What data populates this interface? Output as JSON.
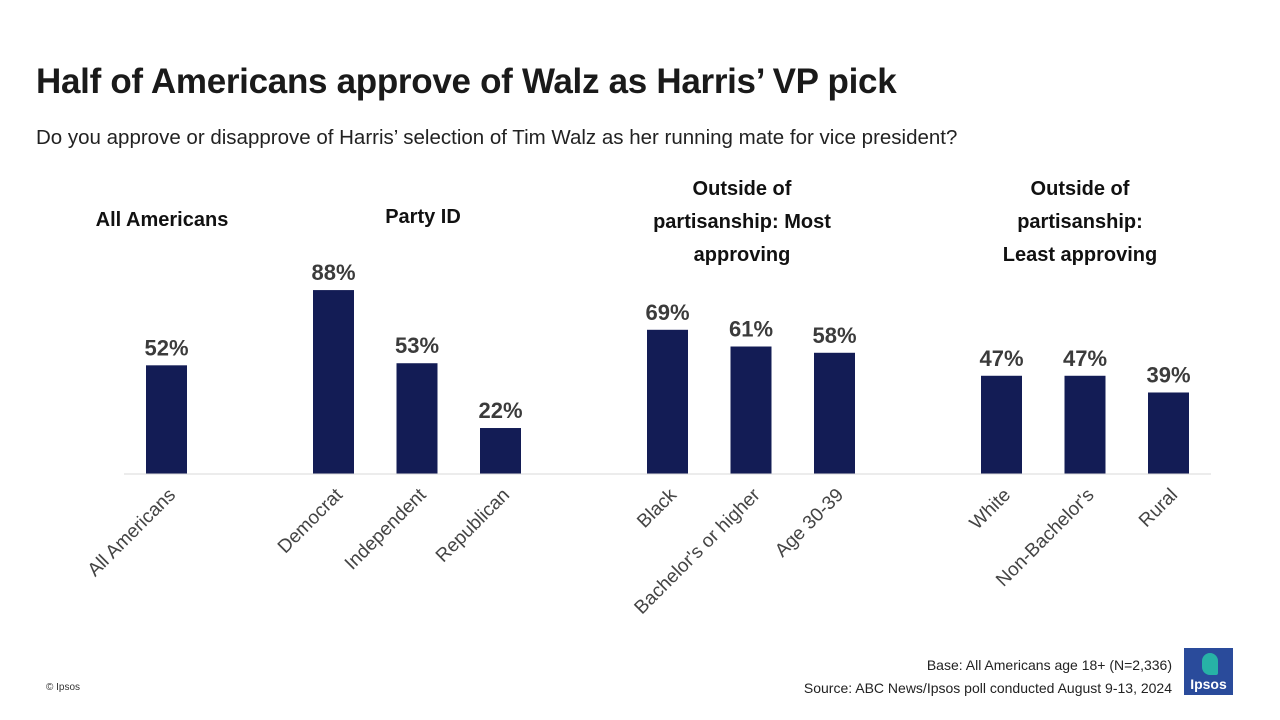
{
  "header": {
    "title": "Half of Americans approve of Walz as Harris’ VP pick",
    "subtitle": "Do you approve or disapprove of Harris’ selection of Tim Walz as her running mate for vice president?"
  },
  "chart_data": {
    "type": "bar",
    "title": "Half of Americans approve of Walz as Harris’ VP pick",
    "subtitle": "Do you approve or disapprove of Harris’ selection of Tim Walz as her running mate for vice president?",
    "value_suffix": "%",
    "bar_color": "#131c55",
    "ylim": [
      0,
      100
    ],
    "grid": false,
    "legend": "none",
    "groups": [
      {
        "label": [
          "All Americans"
        ],
        "categories": [
          "All Americans"
        ],
        "values": [
          52
        ]
      },
      {
        "label": [
          "Party ID"
        ],
        "categories": [
          "Democrat",
          "Independent",
          "Republican"
        ],
        "values": [
          88,
          53,
          22
        ]
      },
      {
        "label": [
          "Outside of",
          "partisanship: Most",
          "approving"
        ],
        "categories": [
          "Black",
          "Bachelor's or higher",
          "Age 30-39"
        ],
        "values": [
          69,
          61,
          58
        ]
      },
      {
        "label": [
          "Outside of",
          "partisanship:",
          "Least approving"
        ],
        "categories": [
          "White",
          "Non-Bachelor's",
          "Rural"
        ],
        "values": [
          47,
          47,
          39
        ]
      }
    ]
  },
  "footer": {
    "base": "Base: All Americans age 18+ (N=2,336)",
    "source": "Source: ABC News/Ipsos poll conducted August 9-13, 2024",
    "copyright": "© Ipsos",
    "logo_text": "Ipsos"
  },
  "colors": {
    "bar": "#131c55",
    "logo_bg": "#2a4b9b",
    "logo_accent": "#27b2a6"
  }
}
